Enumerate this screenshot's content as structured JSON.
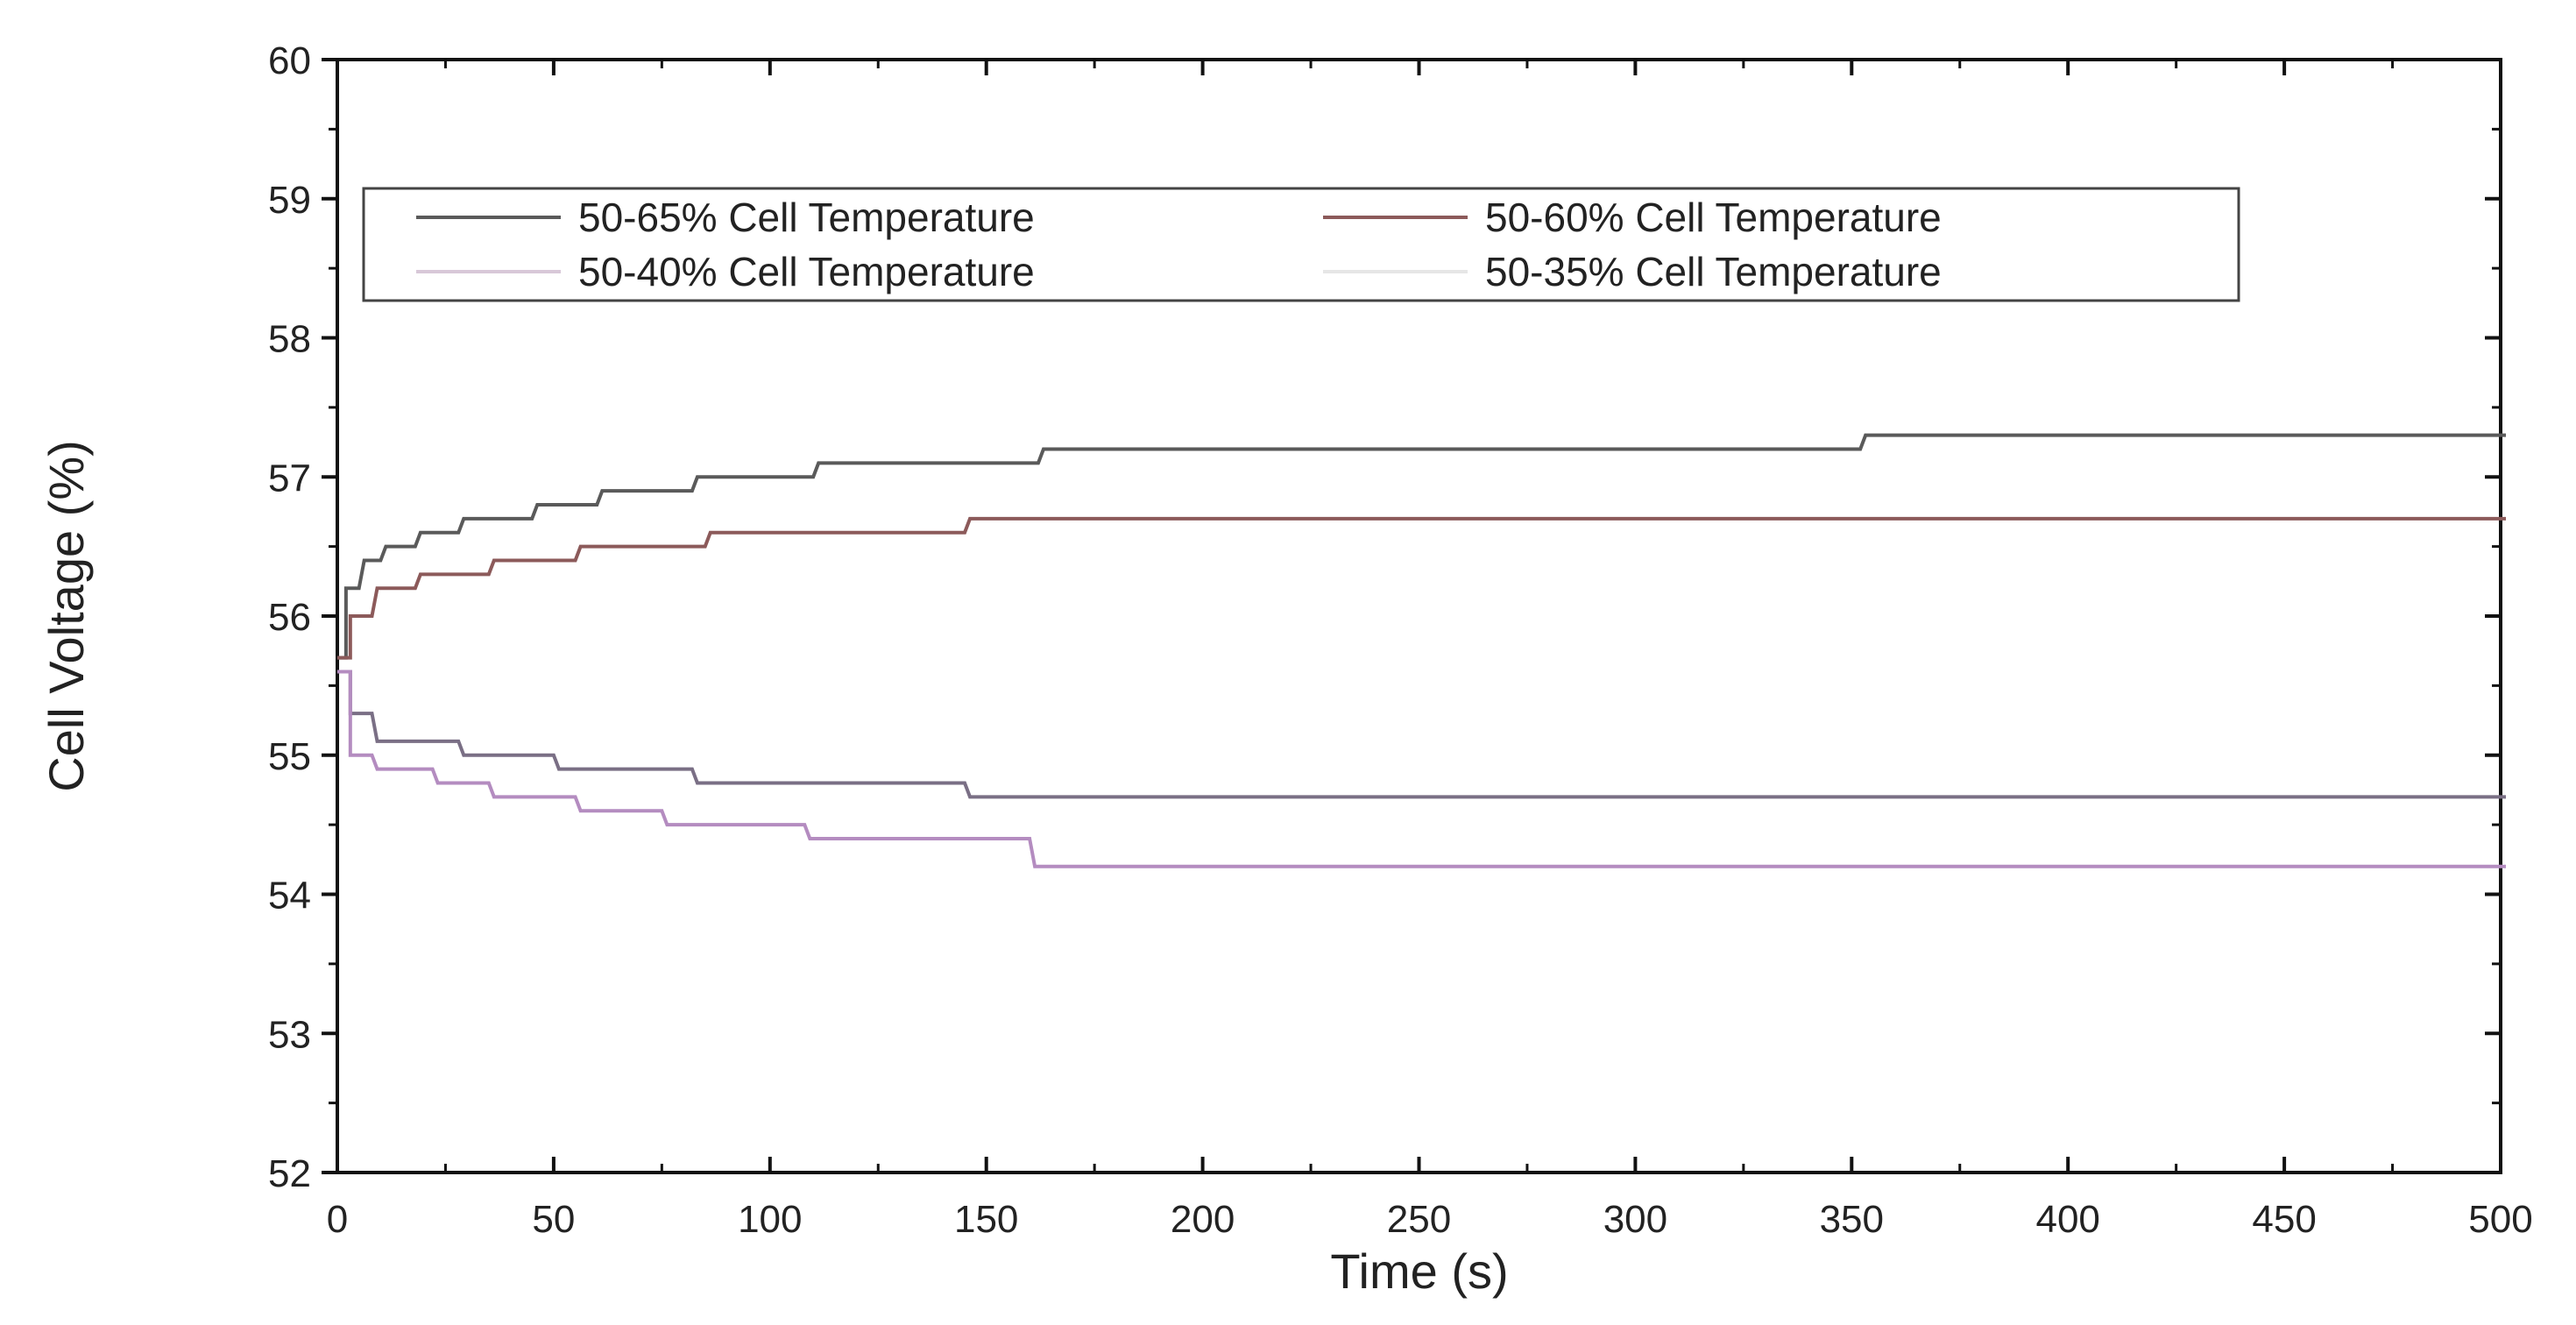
{
  "chart_data": {
    "type": "line",
    "title": "",
    "xlabel": "Time (s)",
    "ylabel": "Cell Voltage (%)",
    "xlim": [
      0,
      500
    ],
    "ylim": [
      52,
      60
    ],
    "xticks": [
      0,
      50,
      100,
      150,
      200,
      250,
      300,
      350,
      400,
      450,
      500
    ],
    "yticks": [
      52,
      53,
      54,
      55,
      56,
      57,
      58,
      59,
      60
    ],
    "grid": false,
    "legend_position": "upper-left, two columns",
    "series": [
      {
        "name": "50-65% Cell Temperature",
        "color": "#5a5a5a",
        "step": true,
        "x": [
          0,
          2,
          5,
          10,
          18,
          28,
          45,
          60,
          82,
          110,
          162,
          352,
          500
        ],
        "values": [
          55.7,
          56.2,
          56.4,
          56.5,
          56.6,
          56.7,
          56.8,
          56.9,
          57.0,
          57.1,
          57.2,
          57.3,
          57.3
        ]
      },
      {
        "name": "50-60% Cell Temperature",
        "color": "#8c5a5a",
        "step": true,
        "x": [
          0,
          3,
          8,
          18,
          35,
          55,
          85,
          145,
          500
        ],
        "values": [
          55.7,
          56.0,
          56.2,
          56.3,
          56.4,
          56.5,
          56.6,
          56.7,
          56.7
        ]
      },
      {
        "name": "50-40% Cell Temperature",
        "color": "#7a6f85",
        "step": true,
        "x": [
          0,
          3,
          8,
          28,
          50,
          82,
          145,
          500
        ],
        "values": [
          55.6,
          55.3,
          55.1,
          55.0,
          54.9,
          54.8,
          54.7,
          54.7
        ]
      },
      {
        "name": "50-35% Cell Temperature",
        "color": "#b48cc0",
        "step": true,
        "x": [
          0,
          3,
          8,
          22,
          35,
          55,
          75,
          108,
          160,
          500
        ],
        "values": [
          55.6,
          55.0,
          54.9,
          54.8,
          54.7,
          54.6,
          54.5,
          54.4,
          54.2,
          54.2
        ]
      }
    ]
  },
  "axes": {
    "xlabel": "Time (s)",
    "ylabel": "Cell Voltage (%)",
    "xtick_labels": [
      "0",
      "50",
      "100",
      "150",
      "200",
      "250",
      "300",
      "350",
      "400",
      "450",
      "500"
    ],
    "ytick_labels": [
      "52",
      "53",
      "54",
      "55",
      "56",
      "57",
      "58",
      "59",
      "60"
    ]
  },
  "legend": {
    "items": [
      {
        "label": "50-65% Cell Temperature",
        "color": "#5a5a5a"
      },
      {
        "label": "50-60% Cell Temperature",
        "color": "#8c5a5a"
      },
      {
        "label": "50-40% Cell Temperature",
        "color": "#d8c8d8"
      },
      {
        "label": "50-35% Cell Temperature",
        "color": "#e6e6e6"
      }
    ]
  }
}
